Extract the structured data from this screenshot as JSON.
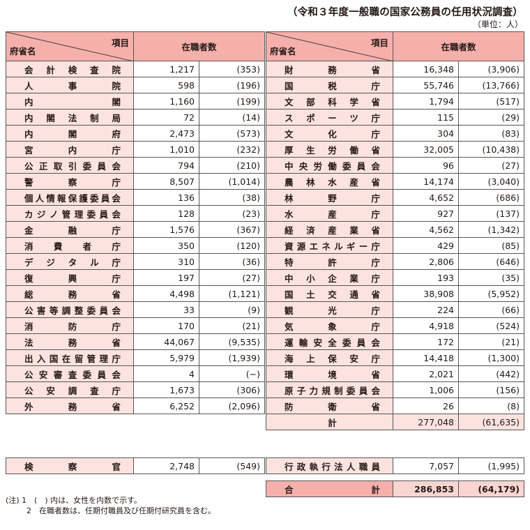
{
  "title": "（令和３年度一般職の国家公務員の任用状況調査）",
  "unit": "（単位：人）",
  "header": {
    "item_label": "項目",
    "ministry_label": "府省名",
    "count_label": "在職者数"
  },
  "left_table": {
    "rows": [
      {
        "name": [
          "会",
          "計",
          "検",
          "査",
          "院"
        ],
        "count": "1,217",
        "women": "(353)"
      },
      {
        "name": [
          "人",
          "事",
          "院"
        ],
        "count": "598",
        "women": "(196)"
      },
      {
        "name": [
          "内",
          "閣"
        ],
        "count": "1,160",
        "women": "(199)"
      },
      {
        "name": [
          "内",
          "閣",
          "法",
          "制",
          "局"
        ],
        "count": "72",
        "women": "(14)"
      },
      {
        "name": [
          "内",
          "閣",
          "府"
        ],
        "count": "2,473",
        "women": "(573)"
      },
      {
        "name": [
          "宮",
          "内",
          "庁"
        ],
        "count": "1,010",
        "women": "(232)"
      },
      {
        "name": [
          "公",
          "正",
          "取",
          "引",
          "委",
          "員",
          "会"
        ],
        "count": "794",
        "women": "(210)"
      },
      {
        "name": [
          "警",
          "察",
          "庁"
        ],
        "count": "8,507",
        "women": "(1,014)"
      },
      {
        "name": [
          "個",
          "人",
          "情",
          "報",
          "保",
          "護",
          "委",
          "員",
          "会"
        ],
        "count": "136",
        "women": "(38)"
      },
      {
        "name": [
          "カ",
          "ジ",
          "ノ",
          "管",
          "理",
          "委",
          "員",
          "会"
        ],
        "count": "128",
        "women": "(23)"
      },
      {
        "name": [
          "金",
          "融",
          "庁"
        ],
        "count": "1,576",
        "women": "(367)"
      },
      {
        "name": [
          "消",
          "費",
          "者",
          "庁"
        ],
        "count": "350",
        "women": "(120)"
      },
      {
        "name": [
          "デ",
          "ジ",
          "タ",
          "ル",
          "庁"
        ],
        "count": "310",
        "women": "(36)"
      },
      {
        "name": [
          "復",
          "興",
          "庁"
        ],
        "count": "197",
        "women": "(27)"
      },
      {
        "name": [
          "総",
          "務",
          "省"
        ],
        "count": "4,498",
        "women": "(1,121)"
      },
      {
        "name": [
          "公",
          "害",
          "等",
          "調",
          "整",
          "委",
          "員",
          "会"
        ],
        "count": "33",
        "women": "(9)"
      },
      {
        "name": [
          "消",
          "防",
          "庁"
        ],
        "count": "170",
        "women": "(21)"
      },
      {
        "name": [
          "法",
          "務",
          "省"
        ],
        "count": "44,067",
        "women": "(9,535)"
      },
      {
        "name": [
          "出",
          "入",
          "国",
          "在",
          "留",
          "管",
          "理",
          "庁"
        ],
        "count": "5,979",
        "women": "(1,939)"
      },
      {
        "name": [
          "公",
          "安",
          "審",
          "査",
          "委",
          "員",
          "会"
        ],
        "count": "4",
        "women": "(−)"
      },
      {
        "name": [
          "公",
          "安",
          "調",
          "査",
          "庁"
        ],
        "count": "1,673",
        "women": "(306)"
      },
      {
        "name": [
          "外",
          "務",
          "省"
        ],
        "count": "6,252",
        "women": "(2,096)"
      }
    ],
    "prosecutors": {
      "name": [
        "検",
        "察",
        "官"
      ],
      "count": "2,748",
      "women": "(549)"
    }
  },
  "right_table": {
    "rows": [
      {
        "name": [
          "財",
          "務",
          "省"
        ],
        "count": "16,348",
        "women": "(3,906)"
      },
      {
        "name": [
          "国",
          "税",
          "庁"
        ],
        "count": "55,746",
        "women": "(13,766)"
      },
      {
        "name": [
          "文",
          "部",
          "科",
          "学",
          "省"
        ],
        "count": "1,794",
        "women": "(517)"
      },
      {
        "name": [
          "ス",
          "ポ",
          "ー",
          "ツ",
          "庁"
        ],
        "count": "115",
        "women": "(29)"
      },
      {
        "name": [
          "文",
          "化",
          "庁"
        ],
        "count": "304",
        "women": "(83)"
      },
      {
        "name": [
          "厚",
          "生",
          "労",
          "働",
          "省"
        ],
        "count": "32,005",
        "women": "(10,438)"
      },
      {
        "name": [
          "中",
          "央",
          "労",
          "働",
          "委",
          "員",
          "会"
        ],
        "count": "96",
        "women": "(27)"
      },
      {
        "name": [
          "農",
          "林",
          "水",
          "産",
          "省"
        ],
        "count": "14,174",
        "women": "(3,040)"
      },
      {
        "name": [
          "林",
          "野",
          "庁"
        ],
        "count": "4,652",
        "women": "(686)"
      },
      {
        "name": [
          "水",
          "産",
          "庁"
        ],
        "count": "927",
        "women": "(137)"
      },
      {
        "name": [
          "経",
          "済",
          "産",
          "業",
          "省"
        ],
        "count": "4,562",
        "women": "(1,342)"
      },
      {
        "name": [
          "資",
          "源",
          "エ",
          "ネ",
          "ル",
          "ギ",
          "ー",
          "庁"
        ],
        "count": "429",
        "women": "(85)"
      },
      {
        "name": [
          "特",
          "許",
          "庁"
        ],
        "count": "2,806",
        "women": "(646)"
      },
      {
        "name": [
          "中",
          "小",
          "企",
          "業",
          "庁"
        ],
        "count": "193",
        "women": "(35)"
      },
      {
        "name": [
          "国",
          "土",
          "交",
          "通",
          "省"
        ],
        "count": "38,908",
        "women": "(5,952)"
      },
      {
        "name": [
          "観",
          "光",
          "庁"
        ],
        "count": "224",
        "women": "(66)"
      },
      {
        "name": [
          "気",
          "象",
          "庁"
        ],
        "count": "4,918",
        "women": "(524)"
      },
      {
        "name": [
          "運",
          "輸",
          "安",
          "全",
          "委",
          "員",
          "会"
        ],
        "count": "172",
        "women": "(21)"
      },
      {
        "name": [
          "海",
          "上",
          "保",
          "安",
          "庁"
        ],
        "count": "14,418",
        "women": "(1,300)"
      },
      {
        "name": [
          "環",
          "境",
          "省"
        ],
        "count": "2,021",
        "women": "(442)"
      },
      {
        "name": [
          "原",
          "子",
          "力",
          "規",
          "制",
          "委",
          "員",
          "会"
        ],
        "count": "1,006",
        "women": "(156)"
      },
      {
        "name": [
          "防",
          "衛",
          "省"
        ],
        "count": "26",
        "women": "(8)"
      }
    ],
    "subtotal": {
      "label": "計",
      "count": "277,048",
      "women": "(61,635)"
    },
    "admin_agency": {
      "name": [
        "行",
        "政",
        "執",
        "行",
        "法",
        "人",
        "職",
        "員"
      ],
      "count": "7,057",
      "women": "(1,995)"
    },
    "grand_total": {
      "name": [
        "合",
        "計"
      ],
      "count": "286,853",
      "women": "(64,179)"
    }
  },
  "notes": {
    "line1": "(注) 1　(　) 内は、女性を内数で示す。",
    "line2": "2　在職者数は、任期付職員及び任期付研究員を含む。"
  },
  "colors": {
    "header_bg": "#f6b0ac",
    "name_cell_bg": "#fde3e0",
    "grand_total_value_bg": "#fbd5d1",
    "border": "#555555"
  }
}
